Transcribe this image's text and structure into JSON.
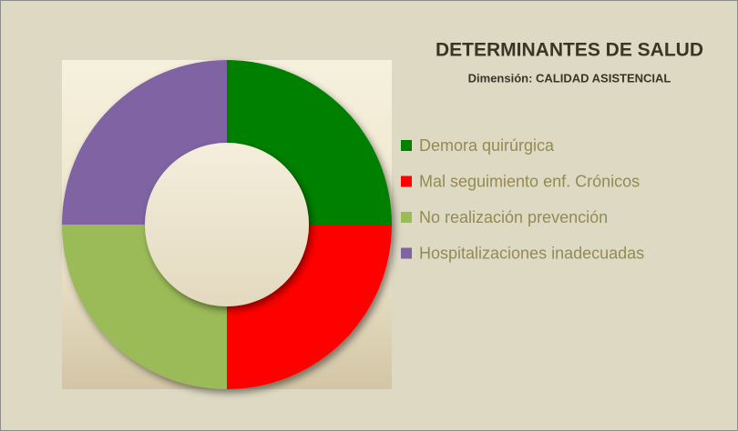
{
  "chart_data": {
    "type": "donut",
    "title": "DETERMINANTES DE SALUD",
    "subtitle": "Dimensión: CALIDAD ASISTENCIAL",
    "categories": [
      "Demora quirúrgica",
      "Mal seguimiento enf. Crónicos",
      "No realización prevención",
      "Hospitalizaciones inadecuadas"
    ],
    "values": [
      25,
      25,
      25,
      25
    ],
    "colors": [
      "#008000",
      "#ff0000",
      "#9bbb59",
      "#8064a2"
    ]
  }
}
